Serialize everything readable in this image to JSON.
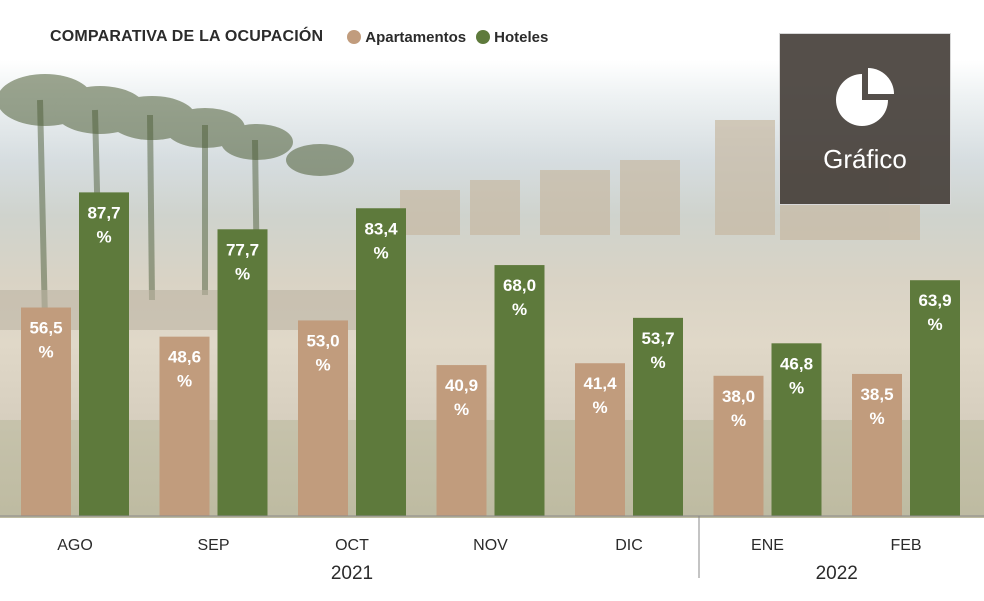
{
  "chart_data": {
    "type": "bar",
    "title": "COMPARATIVA DE LA OCUPACIÓN",
    "categories": [
      "AGO",
      "SEP",
      "OCT",
      "NOV",
      "DIC",
      "ENE",
      "FEB"
    ],
    "series": [
      {
        "name": "Apartamentos",
        "color": "#c19c7d",
        "values": [
          56.5,
          48.6,
          53.0,
          40.9,
          41.4,
          38.0,
          38.5
        ],
        "labels": [
          "56,5",
          "48,6",
          "53,0",
          "40,9",
          "41,4",
          "38,0",
          "38,5"
        ]
      },
      {
        "name": "Hoteles",
        "color": "#5e7a3c",
        "values": [
          87.7,
          77.7,
          83.4,
          68.0,
          53.7,
          46.8,
          63.9
        ],
        "labels": [
          "87,7",
          "77,7",
          "83,4",
          "68,0",
          "53,7",
          "46,8",
          "63,9"
        ]
      }
    ],
    "unit_label": "%",
    "years": [
      {
        "label": "2021",
        "categories": [
          "AGO",
          "SEP",
          "OCT",
          "NOV",
          "DIC"
        ]
      },
      {
        "label": "2022",
        "categories": [
          "ENE",
          "FEB"
        ]
      }
    ],
    "ylim": [
      0,
      100
    ],
    "grid": false,
    "legend_position": "top"
  },
  "badge": {
    "label": "Gráfico",
    "icon": "pie-chart-icon"
  },
  "colors": {
    "text": "#2b2b2b",
    "badge_bg": "#48423c",
    "axis": "#8a8a8a"
  }
}
